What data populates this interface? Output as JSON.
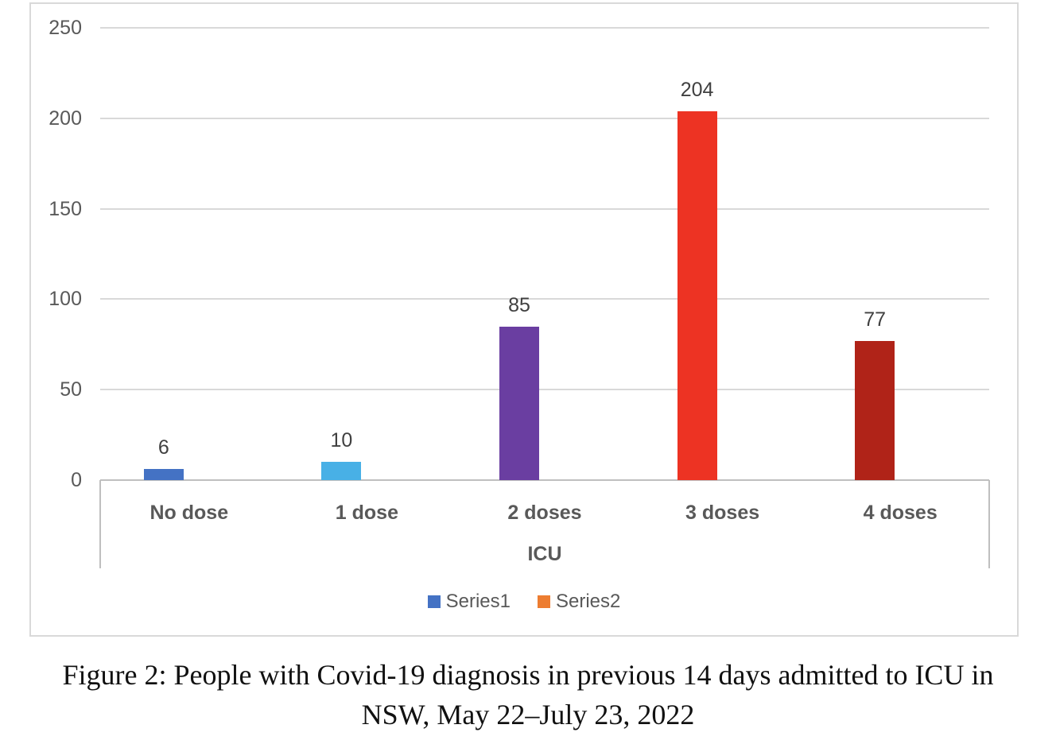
{
  "figure": {
    "caption_lines": [
      "Figure 2: People with Covid-19 diagnosis in previous 14 days admitted to ICU in",
      "NSW, May 22–July 23, 2022"
    ]
  },
  "chart_data": {
    "type": "bar",
    "title": "",
    "categories": [
      "No dose",
      "1 dose",
      "2 doses",
      "3 doses",
      "4 doses"
    ],
    "series": [
      {
        "name": "Series1",
        "values": [
          6,
          10,
          85,
          204,
          77
        ],
        "visible": true
      },
      {
        "name": "Series2",
        "values": [
          0,
          0,
          0,
          0,
          0
        ],
        "visible": false
      }
    ],
    "data_labels": [
      "6",
      "10",
      "85",
      "204",
      "77"
    ],
    "point_colors": [
      "#4472C4",
      "#48B0E6",
      "#6A3EA1",
      "#ED3323",
      "#B02318"
    ],
    "xlabel": "ICU",
    "ylabel": "",
    "ylim": [
      0,
      250
    ],
    "yticks": [
      0,
      50,
      100,
      150,
      200,
      250
    ],
    "grid": true,
    "legend": {
      "position": "bottom",
      "entries": [
        {
          "label": "Series1",
          "color": "#4472C4"
        },
        {
          "label": "Series2",
          "color": "#ED7D31"
        }
      ]
    },
    "colors": {
      "gridline": "#D9D9D9",
      "axis_line": "#BFBFBF",
      "tick_label": "#595959",
      "category_label": "#595959",
      "data_label": "#404040",
      "legend_label": "#595959",
      "frame_border": "#D9D9D9",
      "background": "#FFFFFF"
    }
  }
}
